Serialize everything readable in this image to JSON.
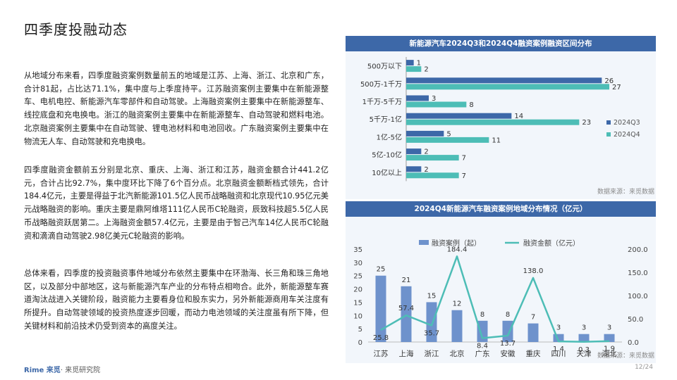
{
  "page_title": "四季度投融动态",
  "paragraphs": [
    "从地域分布来看，四季度融资案例数量前五的地域是江苏、上海、浙江、北京和广东，合计81起，占比达71.1%，集中度与上季度持平。江苏融资案例主要集中在新能源整车、电机电控、新能源汽车零部件和自动驾驶。上海融资案例主要集中在新能源整车、线控底盘和充电换电。浙江的融资案例主要集中在新能源整车、自动驾驶和燃料电池。北京融资案例主要集中在自动驾驶、锂电池材料和电池回收。广东融资案例主要集中在物流无人车、自动驾驶和充电换电。",
    "四季度融资金额前五分别是北京、重庆、上海、浙江和江苏，融资金额合计441.2亿元，合计占比92.7%，集中度环比下降了6个百分点。北京融资金额断档式领先，合计184.4亿元，主要是得益于北汽新能源101.5亿人民币战略融资和北京现代10.95亿元美元战略融资的影响。重庆主要是鼎阿维塔111亿人民币C轮融资，辰致科技超5.5亿人民币战略融资跃居第二。上海融资金额57.4亿元，主要是由于智己汽车14亿人民币C轮融资和滴滴自动驾驶2.98亿美元C轮融资的影响。",
    "总体来看，四季度的投资融资事件地域分布依然主要集中在环渤海、长三角和珠三角地区，以及部分中部地区，这与新能源汽车产业的分布特点相吻合。此外，新能源整车赛道淘汰战进入关键阶段，融资能力主要看身位和股东实力，另外新能源商用车关注度有所提升。自动驾驶领域的投资热度逐步回暖，而动力电池领域的关注度虽有所下降，但关键材料和前沿技术仍受到资本的高度关注。"
  ],
  "source_top": "数据来源：来觅数据",
  "source_bottom": "数据来源：来觅数据",
  "logo_brand": "Rime 来觅",
  "logo_sub": "· 来觅研究院",
  "page_number": "12/24",
  "colors": {
    "header": "#3d68a8",
    "q3": "#3d68a8",
    "q4": "#4dbdb6",
    "bar": "#6e92cc",
    "line": "#4dbdb6"
  },
  "chart_data": [
    {
      "type": "bar",
      "orientation": "horizontal",
      "title": "新能源汽车2024Q3和2024Q4融资案例融资区间分布",
      "categories": [
        "500万以下",
        "500万-1千万",
        "1千万-5千万",
        "5千万-1亿",
        "1亿-5亿",
        "5亿-10亿",
        "10亿以上"
      ],
      "series": [
        {
          "name": "2024Q3",
          "values": [
            1,
            26,
            3,
            14,
            5,
            2,
            2
          ]
        },
        {
          "name": "2024Q4",
          "values": [
            2,
            27,
            8,
            23,
            11,
            7,
            7
          ]
        }
      ],
      "xlim": [
        0,
        27
      ],
      "legend": "right"
    },
    {
      "type": "bar",
      "title": "2024Q4新能源汽车融资案例地域分布情况（亿元）",
      "categories": [
        "江苏",
        "上海",
        "浙江",
        "北京",
        "广东",
        "安徽",
        "重庆",
        "四川",
        "天津",
        "湖北"
      ],
      "series": [
        {
          "name": "融资案例（起）",
          "type": "bar",
          "axis": "left",
          "values": [
            25,
            21,
            15,
            12,
            8,
            8,
            7,
            3,
            3,
            3
          ]
        },
        {
          "name": "融资金额（亿元）",
          "type": "line",
          "axis": "right",
          "values": [
            25.8,
            57.4,
            35.7,
            184.4,
            8.4,
            13.7,
            138.0,
            1.4,
            0.3,
            1.9
          ]
        }
      ],
      "y_left": {
        "ticks": [
          "0",
          "5",
          "10",
          "15",
          "20",
          "25",
          "30",
          "35"
        ],
        "lim": [
          0,
          35
        ]
      },
      "y_right": {
        "ticks": [
          "0.0",
          "50.0",
          "100.0",
          "150.0",
          "200.0"
        ],
        "lim": [
          0,
          200
        ]
      },
      "line_labels": [
        "25.8",
        "57.4",
        "35.7",
        "184.4",
        "8.4",
        "13.7",
        "138.0",
        "1.4",
        "0.3",
        "1.9"
      ],
      "legend": "top"
    }
  ]
}
